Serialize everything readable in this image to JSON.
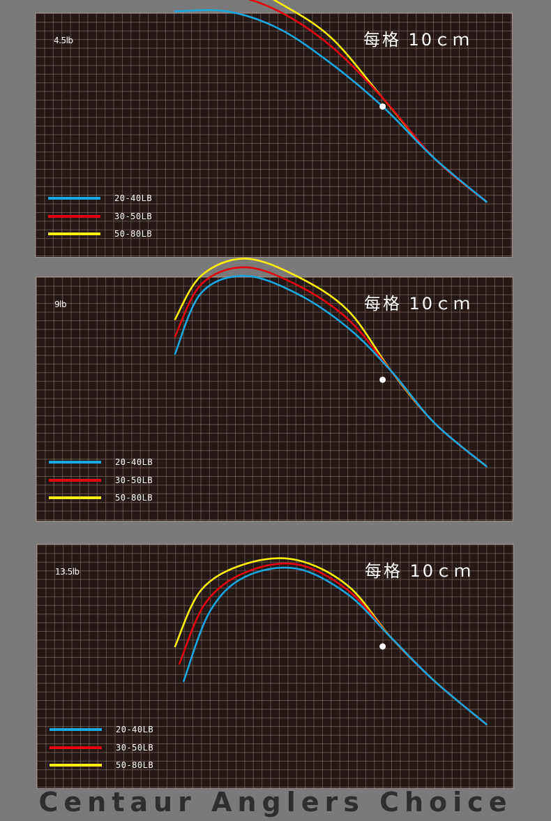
{
  "chart_data": [
    {
      "type": "line",
      "load_label": "4.5lb",
      "scale_label": "每格  10ｃｍ",
      "legend": "bottom-left",
      "grid": true,
      "series": [
        {
          "name": "20-40LB",
          "color": "#1aa7e1",
          "points": [
            [
              0,
              -12
            ],
            [
              6,
              -12
            ],
            [
              12,
              -10
            ],
            [
              18,
              -6
            ],
            [
              24,
              -1
            ],
            [
              30,
              5
            ],
            [
              36,
              10
            ]
          ]
        },
        {
          "name": "30-50LB",
          "color": "#e60012",
          "points": [
            [
              0,
              -14
            ],
            [
              6,
              -14
            ],
            [
              12,
              -12
            ],
            [
              18,
              -8
            ],
            [
              24,
              -2
            ],
            [
              30,
              5
            ],
            [
              36,
              10
            ]
          ]
        },
        {
          "name": "50-80LB",
          "color": "#fff100",
          "points": [
            [
              0,
              -16
            ],
            [
              6,
              -16
            ],
            [
              12,
              -13
            ],
            [
              18,
              -9
            ],
            [
              24,
              -2
            ],
            [
              30,
              5
            ],
            [
              36,
              10
            ]
          ]
        }
      ]
    },
    {
      "type": "line",
      "load_label": "9lb",
      "scale_label": "每格  10ｃｍ",
      "legend": "bottom-left",
      "grid": true,
      "series": [
        {
          "name": "20-40LB",
          "color": "#1aa7e1",
          "points": [
            [
              0,
              -3
            ],
            [
              3,
              -10
            ],
            [
              8,
              -12
            ],
            [
              14,
              -10
            ],
            [
              20,
              -6
            ],
            [
              25,
              -1
            ],
            [
              30,
              5
            ],
            [
              36,
              10
            ]
          ]
        },
        {
          "name": "30-50LB",
          "color": "#e60012",
          "points": [
            [
              0,
              -5
            ],
            [
              3,
              -11
            ],
            [
              8,
              -13
            ],
            [
              14,
              -11
            ],
            [
              20,
              -7
            ],
            [
              25,
              -1
            ],
            [
              30,
              5
            ],
            [
              36,
              10
            ]
          ]
        },
        {
          "name": "50-80LB",
          "color": "#fff100",
          "points": [
            [
              0,
              -7
            ],
            [
              3,
              -12
            ],
            [
              8,
              -14
            ],
            [
              14,
              -12
            ],
            [
              20,
              -8
            ],
            [
              25,
              -1
            ],
            [
              30,
              5
            ],
            [
              36,
              10
            ]
          ]
        }
      ]
    },
    {
      "type": "line",
      "load_label": "13.5lb",
      "scale_label": "每格  10ｃｍ",
      "legend": "bottom-left",
      "grid": true,
      "series": [
        {
          "name": "20-40LB",
          "color": "#1aa7e1",
          "points": [
            [
              1,
              4
            ],
            [
              4,
              -4
            ],
            [
              8,
              -8
            ],
            [
              14,
              -9
            ],
            [
              20,
              -6
            ],
            [
              25,
              -1
            ],
            [
              30,
              4
            ],
            [
              36,
              9
            ]
          ]
        },
        {
          "name": "30-50LB",
          "color": "#e60012",
          "points": [
            [
              0.5,
              2
            ],
            [
              3.5,
              -5
            ],
            [
              8,
              -8.5
            ],
            [
              14,
              -9.5
            ],
            [
              20,
              -6.5
            ],
            [
              25,
              -1
            ],
            [
              30,
              4
            ],
            [
              36,
              9
            ]
          ]
        },
        {
          "name": "50-80LB",
          "color": "#fff100",
          "points": [
            [
              0,
              0
            ],
            [
              3,
              -6.5
            ],
            [
              8,
              -9.5
            ],
            [
              14,
              -10
            ],
            [
              20,
              -7
            ],
            [
              25,
              -1
            ],
            [
              30,
              4
            ],
            [
              36,
              9
            ]
          ]
        }
      ]
    }
  ],
  "brand_text": "Centaur Anglers Choice"
}
